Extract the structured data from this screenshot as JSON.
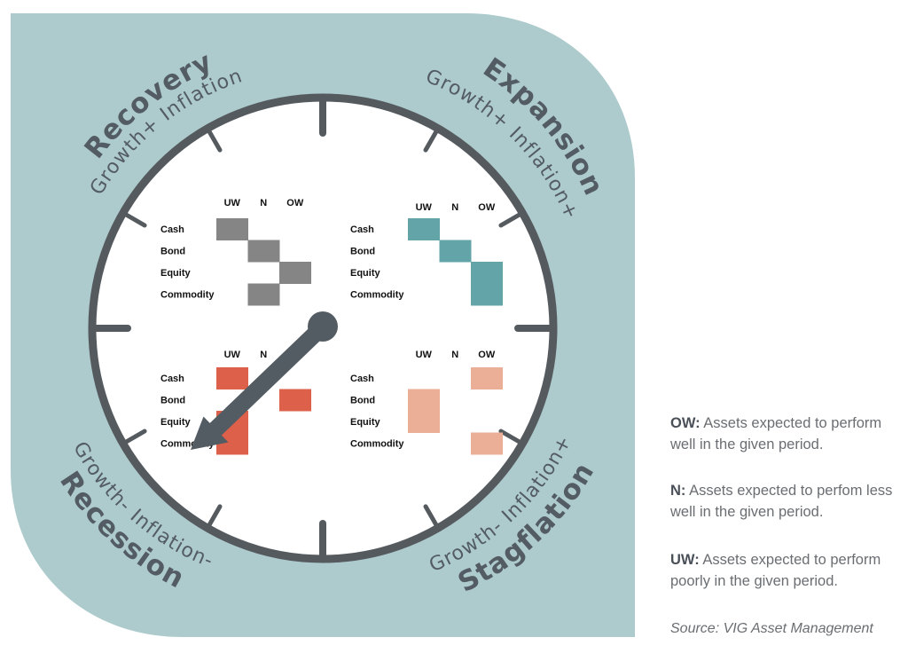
{
  "regimes": {
    "recovery": {
      "name": "Recovery",
      "condition": "Growth+ Inflation-"
    },
    "expansion": {
      "name": "Expansion",
      "condition": "Growth+ Inflation+"
    },
    "recession": {
      "name": "Recession",
      "condition": "Growth- Inflation-"
    },
    "stagflation": {
      "name": "Stagflation",
      "condition": "Growth- Inflation+"
    }
  },
  "matrix": {
    "columns": [
      "UW",
      "N",
      "OW"
    ],
    "assets": [
      "Cash",
      "Bond",
      "Equity",
      "Commodity"
    ]
  },
  "quadrants": [
    {
      "id": "recovery",
      "color": "#858585",
      "show_ow_header": true,
      "positions": {
        "Cash": "UW",
        "Bond": "N",
        "Equity": "OW",
        "Commodity": "N"
      }
    },
    {
      "id": "expansion",
      "color": "#62a4a8",
      "show_ow_header": true,
      "positions": {
        "Cash": "UW",
        "Bond": "N",
        "Equity": "OW",
        "Commodity": "OW"
      }
    },
    {
      "id": "recession",
      "color": "#dd604a",
      "show_ow_header": false,
      "positions": {
        "Cash": "UW",
        "Bond": "OW",
        "Equity": "UW",
        "Commodity": "UW"
      }
    },
    {
      "id": "stagflation",
      "color": "#ebae96",
      "show_ow_header": true,
      "positions": {
        "Cash": "OW",
        "Bond": "UW",
        "Equity": "UW",
        "Commodity": "OW"
      }
    }
  ],
  "pointer": {
    "points_to": "recession"
  },
  "legend": {
    "ow": {
      "key": "OW:",
      "text": "Assets expected to perform well in the given period."
    },
    "n": {
      "key": "N:",
      "text": "Assets expected to perfom less well in the given period."
    },
    "uw": {
      "key": "UW:",
      "text": "Assets expected to perform poorly in the given period."
    }
  },
  "source": "Source: VIG Asset Management",
  "colors": {
    "background_panel": "#adcbcd",
    "dial_face": "#ffffff",
    "dial_ring": "#555a5f",
    "text": "#545c63"
  }
}
